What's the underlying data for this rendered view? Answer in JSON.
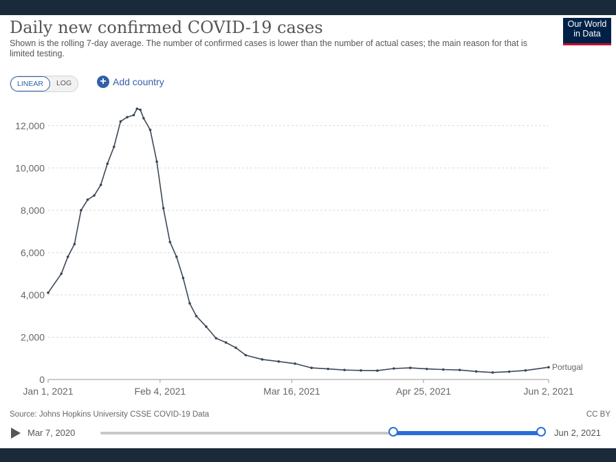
{
  "header": {
    "title": "Daily new confirmed COVID-19 cases",
    "subtitle": "Shown is the rolling 7-day average. The number of confirmed cases is lower than the number of actual cases; the main reason for that is limited testing.",
    "logo_line1": "Our World",
    "logo_line2": "in Data",
    "logo_color": "#002147",
    "logo_accent": "#c8102e"
  },
  "controls": {
    "linear_label": "LINEAR",
    "log_label": "LOG",
    "add_country_label": "Add country",
    "add_icon": "plus-circle-icon"
  },
  "footer": {
    "source": "Source: Johns Hopkins University CSSE COVID-19 Data",
    "license": "CC BY"
  },
  "timeline": {
    "start_label": "Mar 7, 2020",
    "end_label": "Jun 2, 2021",
    "play_icon": "play-icon",
    "accent": "#2a6dd8"
  },
  "chart_data": {
    "type": "line",
    "title": "Daily new confirmed COVID-19 cases",
    "xlabel": "",
    "ylabel": "",
    "x_range": [
      "2021-01-01",
      "2021-06-02"
    ],
    "ylim": [
      0,
      13000
    ],
    "y_ticks": [
      0,
      2000,
      4000,
      6000,
      8000,
      10000,
      12000
    ],
    "y_tick_labels": [
      "0",
      "2,000",
      "4,000",
      "6,000",
      "8,000",
      "10,000",
      "12,000"
    ],
    "x_ticks": [
      "2021-01-01",
      "2021-02-04",
      "2021-03-16",
      "2021-04-25",
      "2021-06-02"
    ],
    "x_tick_labels": [
      "Jan 1, 2021",
      "Feb 4, 2021",
      "Mar 16, 2021",
      "Apr 25, 2021",
      "Jun 2, 2021"
    ],
    "grid": true,
    "line_color": "#3b4756",
    "series": [
      {
        "name": "Portugal",
        "x": [
          "2021-01-01",
          "2021-01-05",
          "2021-01-07",
          "2021-01-09",
          "2021-01-11",
          "2021-01-13",
          "2021-01-15",
          "2021-01-17",
          "2021-01-19",
          "2021-01-21",
          "2021-01-23",
          "2021-01-25",
          "2021-01-27",
          "2021-01-28",
          "2021-01-29",
          "2021-01-30",
          "2021-02-01",
          "2021-02-03",
          "2021-02-05",
          "2021-02-07",
          "2021-02-09",
          "2021-02-11",
          "2021-02-13",
          "2021-02-15",
          "2021-02-18",
          "2021-02-21",
          "2021-02-24",
          "2021-02-27",
          "2021-03-02",
          "2021-03-07",
          "2021-03-12",
          "2021-03-17",
          "2021-03-22",
          "2021-03-27",
          "2021-04-01",
          "2021-04-06",
          "2021-04-11",
          "2021-04-16",
          "2021-04-21",
          "2021-04-26",
          "2021-05-01",
          "2021-05-06",
          "2021-05-11",
          "2021-05-16",
          "2021-05-21",
          "2021-05-26",
          "2021-06-02"
        ],
        "y": [
          4100,
          5000,
          5800,
          6400,
          8000,
          8500,
          8700,
          9200,
          10200,
          11000,
          12200,
          12400,
          12500,
          12800,
          12750,
          12350,
          11800,
          10300,
          8100,
          6500,
          5800,
          4800,
          3600,
          3000,
          2500,
          1950,
          1750,
          1500,
          1150,
          950,
          850,
          750,
          550,
          500,
          450,
          430,
          420,
          520,
          550,
          500,
          470,
          450,
          380,
          330,
          370,
          430,
          580
        ]
      }
    ]
  }
}
